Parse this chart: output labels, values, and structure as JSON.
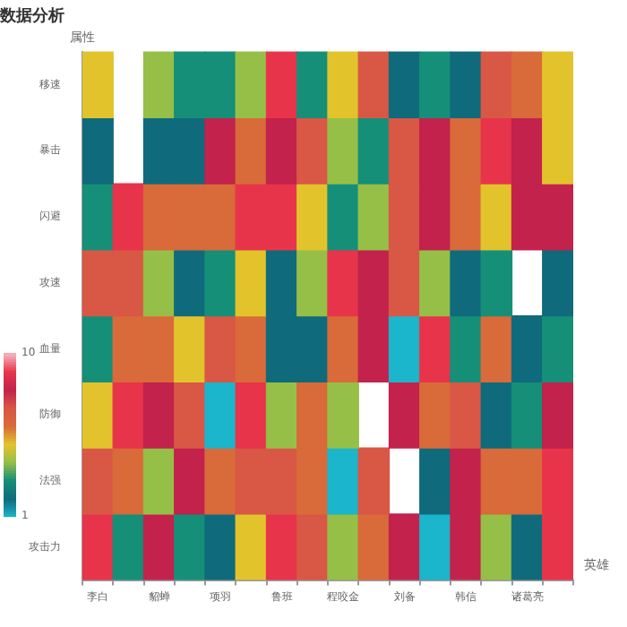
{
  "chart_data": {
    "type": "heatmap",
    "title": "数据分析",
    "xlabel": "英雄",
    "ylabel": "属性",
    "categories": [
      "李白",
      null,
      "貂蝉",
      null,
      "项羽",
      null,
      "鲁班",
      null,
      "程咬金",
      null,
      "刘备",
      null,
      "韩信",
      null,
      "诸葛亮",
      null
    ],
    "y_categories": [
      "移速",
      "暴击",
      "闪避",
      "攻速",
      "血量",
      "防御",
      "法强",
      "攻击力"
    ],
    "cells": [
      [
        5,
        null,
        4,
        3,
        3,
        4,
        9,
        3,
        5,
        7,
        2,
        3,
        2,
        7,
        6,
        5
      ],
      [
        2,
        null,
        2,
        2,
        8,
        6,
        8,
        7,
        4,
        3,
        7,
        8,
        6,
        9,
        8,
        5
      ],
      [
        3,
        9,
        6,
        6,
        6,
        9,
        9,
        5,
        3,
        4,
        7,
        8,
        6,
        5,
        8,
        8
      ],
      [
        7,
        7,
        4,
        2,
        3,
        5,
        2,
        4,
        9,
        8,
        7,
        4,
        2,
        3,
        null,
        2
      ],
      [
        3,
        6,
        6,
        5,
        7,
        6,
        2,
        2,
        6,
        8,
        1,
        9,
        3,
        6,
        2,
        3
      ],
      [
        5,
        9,
        8,
        7,
        1,
        9,
        4,
        6,
        4,
        null,
        8,
        6,
        7,
        2,
        3,
        8
      ],
      [
        7,
        6,
        4,
        8,
        6,
        7,
        7,
        6,
        1,
        7,
        null,
        2,
        8,
        6,
        6,
        9
      ],
      [
        9,
        3,
        8,
        3,
        2,
        5,
        9,
        7,
        4,
        6,
        8,
        1,
        8,
        4,
        2,
        9
      ]
    ],
    "clim": [
      1,
      10
    ],
    "cticks": [
      1,
      10
    ]
  }
}
